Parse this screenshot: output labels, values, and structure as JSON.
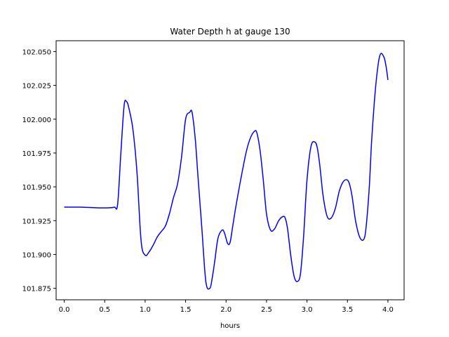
{
  "chart_data": {
    "type": "line",
    "title": "Water Depth h at gauge 130",
    "xlabel": "hours",
    "ylabel": "",
    "xlim": [
      -0.1,
      4.2
    ],
    "ylim": [
      101.8665,
      102.058
    ],
    "x_ticks": [
      0.0,
      0.5,
      1.0,
      1.5,
      2.0,
      2.5,
      3.0,
      3.5,
      4.0
    ],
    "x_tick_labels": [
      "0.0",
      "0.5",
      "1.0",
      "1.5",
      "2.0",
      "2.5",
      "3.0",
      "3.5",
      "4.0"
    ],
    "y_ticks": [
      101.875,
      101.9,
      101.925,
      101.95,
      101.975,
      102.0,
      102.025,
      102.05
    ],
    "y_tick_labels": [
      "101.875",
      "101.900",
      "101.925",
      "101.950",
      "101.975",
      "102.000",
      "102.025",
      "102.050"
    ],
    "grid": false,
    "series": [
      {
        "color": "#0000ff",
        "x": [
          0.0,
          0.2,
          0.4,
          0.55,
          0.62,
          0.66,
          0.7,
          0.74,
          0.77,
          0.8,
          0.85,
          0.9,
          0.95,
          1.0,
          1.05,
          1.1,
          1.15,
          1.2,
          1.25,
          1.3,
          1.35,
          1.4,
          1.45,
          1.5,
          1.55,
          1.58,
          1.62,
          1.65,
          1.7,
          1.75,
          1.8,
          1.83,
          1.86,
          1.9,
          1.95,
          1.98,
          2.02,
          2.05,
          2.08,
          2.12,
          2.18,
          2.25,
          2.3,
          2.35,
          2.38,
          2.42,
          2.46,
          2.5,
          2.55,
          2.6,
          2.65,
          2.7,
          2.73,
          2.76,
          2.8,
          2.84,
          2.88,
          2.92,
          2.96,
          3.0,
          3.05,
          3.1,
          3.13,
          3.16,
          3.2,
          3.25,
          3.3,
          3.35,
          3.4,
          3.45,
          3.5,
          3.53,
          3.56,
          3.6,
          3.65,
          3.7,
          3.73,
          3.77,
          3.8,
          3.85,
          3.9,
          3.95,
          3.98,
          4.0
        ],
        "y": [
          101.935,
          101.935,
          101.9345,
          101.9345,
          101.935,
          101.937,
          101.975,
          102.01,
          102.013,
          102.008,
          101.992,
          101.96,
          101.91,
          101.8995,
          101.902,
          101.907,
          101.913,
          101.917,
          101.921,
          101.93,
          101.942,
          101.952,
          101.972,
          102.0,
          102.005,
          102.005,
          101.985,
          101.96,
          101.92,
          101.88,
          101.875,
          101.883,
          101.895,
          101.912,
          101.918,
          101.916,
          101.908,
          101.909,
          101.92,
          101.935,
          101.955,
          101.976,
          101.986,
          101.991,
          101.99,
          101.977,
          101.955,
          101.93,
          101.918,
          101.919,
          101.925,
          101.928,
          101.927,
          101.919,
          101.899,
          101.884,
          101.88,
          101.886,
          101.915,
          101.955,
          101.98,
          101.983,
          101.978,
          101.965,
          101.943,
          101.928,
          101.927,
          101.934,
          101.947,
          101.954,
          101.955,
          101.951,
          101.942,
          101.925,
          101.913,
          101.911,
          101.92,
          101.95,
          101.985,
          102.025,
          102.047,
          102.046,
          102.038,
          102.029
        ]
      }
    ]
  }
}
